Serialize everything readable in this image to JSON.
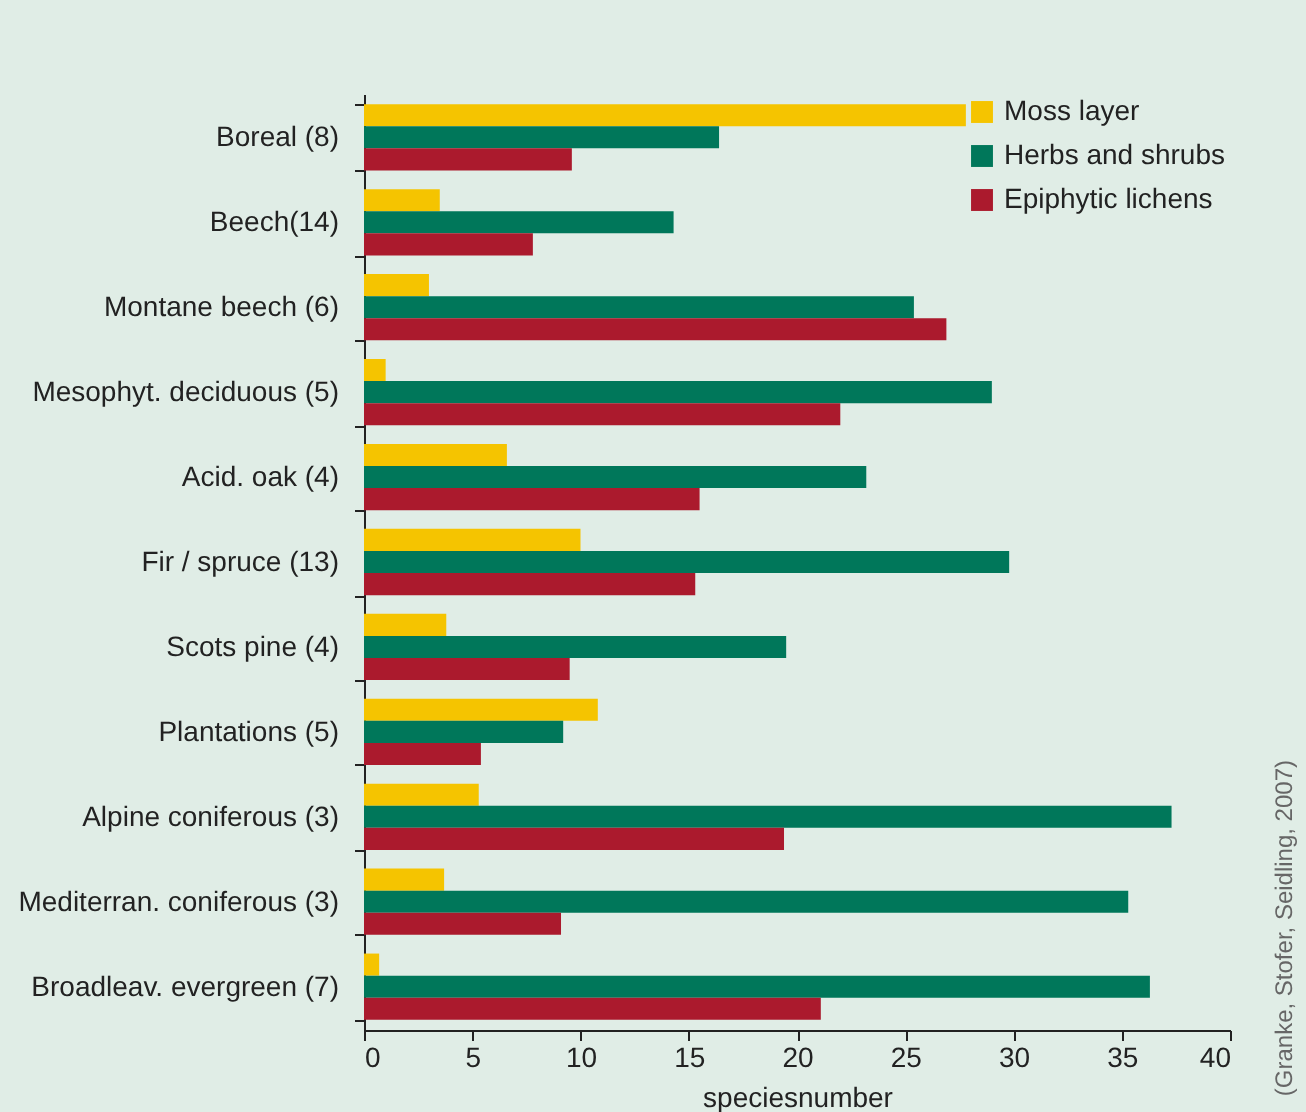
{
  "chart_data": {
    "type": "bar",
    "orientation": "horizontal",
    "xlabel": "speciesnumber",
    "categories": [
      "Boreal (8)",
      "Beech(14)",
      "Montane beech (6)",
      "Mesophyt. deciduous (5)",
      "Acid. oak (4)",
      "Fir / spruce (13)",
      "Scots pine (4)",
      "Plantations (5)",
      "Alpine coniferous (3)",
      "Mediterran. coniferous (3)",
      "Broadleav. evergreen (7)"
    ],
    "series": [
      {
        "name": "Moss layer",
        "color": "#f5c400",
        "values": [
          27.8,
          3.5,
          3.0,
          1.0,
          6.6,
          10.0,
          3.8,
          10.8,
          5.3,
          3.7,
          0.7
        ]
      },
      {
        "name": "Herbs and shrubs",
        "color": "#00775a",
        "values": [
          16.4,
          14.3,
          25.4,
          29.0,
          23.2,
          29.8,
          19.5,
          9.2,
          37.3,
          35.3,
          36.3
        ]
      },
      {
        "name": "Epiphytic lichens",
        "color": "#ab1a2d",
        "values": [
          9.6,
          7.8,
          26.9,
          22.0,
          15.5,
          15.3,
          9.5,
          5.4,
          19.4,
          9.1,
          21.1
        ]
      }
    ],
    "xlim": [
      0,
      40
    ],
    "xticks": [
      0,
      5,
      10,
      15,
      20,
      25,
      30,
      35,
      40
    ],
    "legend": "top right",
    "grid": false,
    "annotations": [
      "(Granke, Stofer, Seidling, 2007)"
    ]
  }
}
